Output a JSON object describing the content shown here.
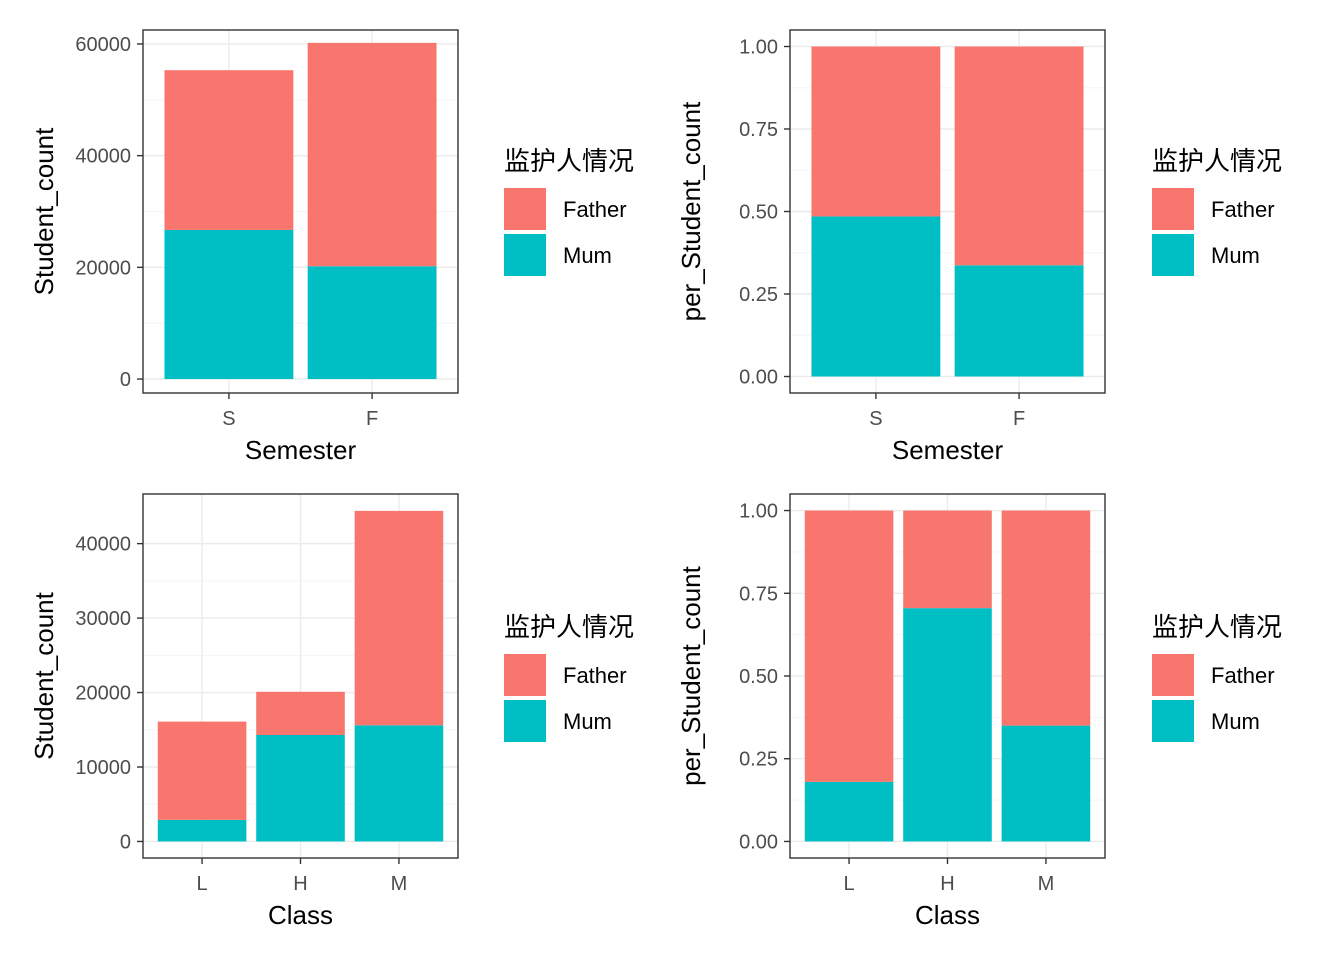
{
  "colors": {
    "Father": "#F8766D",
    "Mum": "#00BFC4",
    "panel_border": "#333333",
    "grid_major": "#ebebeb",
    "grid_minor": "#f5f5f5"
  },
  "chart_data": [
    {
      "type": "bar",
      "stacked": true,
      "categories": [
        "S",
        "F"
      ],
      "series": [
        {
          "name": "Mum",
          "values": [
            26700,
            20200
          ]
        },
        {
          "name": "Father",
          "values": [
            28600,
            40000
          ]
        }
      ],
      "xlabel": "Semester",
      "ylabel": "Student_count",
      "ylim": [
        -2500,
        62500
      ],
      "yticks": [
        0,
        20000,
        40000,
        60000
      ],
      "ytick_labels": [
        "0",
        "20000",
        "40000",
        "60000"
      ],
      "legend_title": "监护人情况",
      "legend_entries": [
        "Father",
        "Mum"
      ],
      "legend_position": "right",
      "grid": true
    },
    {
      "type": "bar",
      "stacked": true,
      "categories": [
        "S",
        "F"
      ],
      "series": [
        {
          "name": "Mum",
          "values": [
            0.485,
            0.337
          ]
        },
        {
          "name": "Father",
          "values": [
            0.515,
            0.663
          ]
        }
      ],
      "xlabel": "Semester",
      "ylabel": "per_Student_count",
      "ylim": [
        -0.05,
        1.05
      ],
      "yticks": [
        0,
        0.25,
        0.5,
        0.75,
        1.0
      ],
      "ytick_labels": [
        "0.00",
        "0.25",
        "0.50",
        "0.75",
        "1.00"
      ],
      "legend_title": "监护人情况",
      "legend_entries": [
        "Father",
        "Mum"
      ],
      "legend_position": "right",
      "grid": true
    },
    {
      "type": "bar",
      "stacked": true,
      "categories": [
        "L",
        "H",
        "M"
      ],
      "series": [
        {
          "name": "Mum",
          "values": [
            2900,
            14300,
            15600
          ]
        },
        {
          "name": "Father",
          "values": [
            13200,
            5800,
            28800
          ]
        }
      ],
      "xlabel": "Class",
      "ylabel": "Student_count",
      "ylim": [
        -2222,
        46666
      ],
      "yticks": [
        0,
        10000,
        20000,
        30000,
        40000
      ],
      "ytick_labels": [
        "0",
        "10000",
        "20000",
        "30000",
        "40000"
      ],
      "legend_title": "监护人情况",
      "legend_entries": [
        "Father",
        "Mum"
      ],
      "legend_position": "right",
      "grid": true
    },
    {
      "type": "bar",
      "stacked": true,
      "categories": [
        "L",
        "H",
        "M"
      ],
      "series": [
        {
          "name": "Mum",
          "values": [
            0.18,
            0.705,
            0.35
          ]
        },
        {
          "name": "Father",
          "values": [
            0.82,
            0.295,
            0.65
          ]
        }
      ],
      "xlabel": "Class",
      "ylabel": "per_Student_count",
      "ylim": [
        -0.05,
        1.05
      ],
      "yticks": [
        0,
        0.25,
        0.5,
        0.75,
        1.0
      ],
      "ytick_labels": [
        "0.00",
        "0.25",
        "0.50",
        "0.75",
        "1.00"
      ],
      "legend_title": "监护人情况",
      "legend_entries": [
        "Father",
        "Mum"
      ],
      "legend_position": "right",
      "grid": true
    }
  ]
}
